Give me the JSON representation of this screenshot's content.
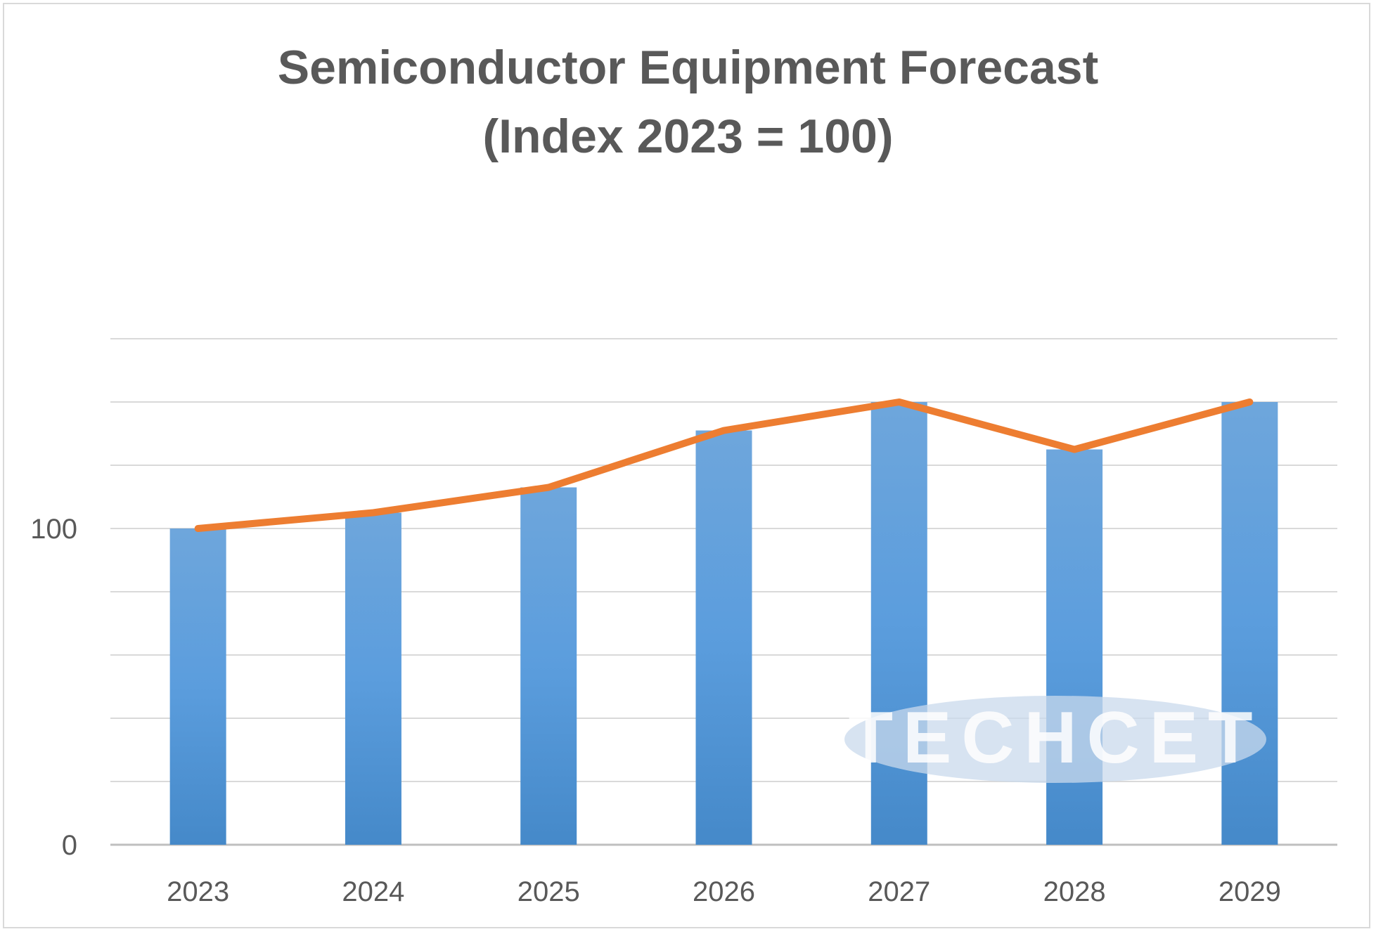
{
  "chart_data": {
    "type": "bar",
    "title_lines": [
      "Semiconductor Equipment Forecast",
      "(Index 2023 = 100)"
    ],
    "categories": [
      "2023",
      "2024",
      "2025",
      "2026",
      "2027",
      "2028",
      "2029"
    ],
    "series": [
      {
        "type": "bar",
        "values": [
          100,
          105,
          113,
          131,
          140,
          125,
          140
        ],
        "color": "#5b9bd5"
      },
      {
        "type": "line",
        "values": [
          100,
          105,
          113,
          131,
          140,
          125,
          140
        ],
        "color": "#ed7d31"
      }
    ],
    "y_tick_labels": [
      {
        "value": 0,
        "label": "0"
      },
      {
        "value": 100,
        "label": "100"
      }
    ],
    "ylim": [
      0,
      160
    ],
    "gridline_step": 20,
    "grid": true,
    "watermark": "TECHCET"
  }
}
